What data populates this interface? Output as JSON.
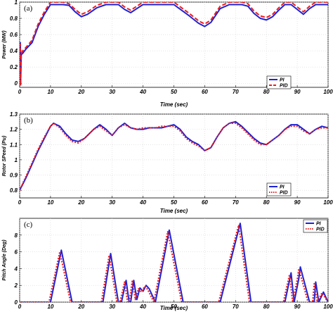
{
  "chart_data": [
    {
      "type": "line",
      "panel_label": "(a)",
      "xlabel": "Time (sec)",
      "ylabel": "Power (MW)",
      "xlim": [
        0,
        100
      ],
      "ylim": [
        -0.05,
        1.0
      ],
      "xticks": [
        0,
        10,
        20,
        30,
        40,
        50,
        60,
        70,
        80,
        90,
        100
      ],
      "yticks": [
        0,
        0.2,
        0.4,
        0.6,
        0.8,
        1
      ],
      "xtick_labels": [
        "0",
        "10",
        "20",
        "30",
        "40",
        "50",
        "60",
        "70",
        "80",
        "90",
        "100"
      ],
      "ytick_labels": [
        "0",
        "0.2",
        "0.4",
        "0.6",
        "0.8",
        "1"
      ],
      "grid": true,
      "legend_position": "lower-right",
      "series": [
        {
          "name": "PI",
          "color": "#1f22d6",
          "style": "solid",
          "x": [
            0,
            0.2,
            0.3,
            0.5,
            0.7,
            1,
            2,
            4,
            6,
            8,
            10,
            11,
            14,
            16,
            18,
            20,
            22,
            25,
            28,
            29,
            32,
            34,
            36,
            38,
            40,
            45,
            50,
            55,
            58,
            60,
            62,
            65,
            68,
            70,
            72,
            74,
            76,
            78,
            80,
            82,
            84,
            86,
            88,
            90,
            92,
            94,
            96,
            100
          ],
          "y": [
            0.4,
            0.5,
            -0.02,
            0.35,
            0.36,
            0.37,
            0.42,
            0.5,
            0.7,
            0.85,
            0.97,
            0.97,
            0.97,
            0.96,
            0.88,
            0.82,
            0.85,
            0.93,
            0.97,
            0.97,
            0.97,
            0.91,
            0.87,
            0.92,
            0.97,
            0.97,
            0.97,
            0.83,
            0.74,
            0.7,
            0.75,
            0.92,
            0.97,
            0.97,
            0.97,
            0.95,
            0.86,
            0.8,
            0.78,
            0.82,
            0.9,
            0.97,
            0.97,
            0.91,
            0.85,
            0.92,
            0.97,
            0.97
          ]
        },
        {
          "name": "PID",
          "color": "#ee1c1c",
          "style": "dashed",
          "x": [
            0,
            0.2,
            0.3,
            0.5,
            0.7,
            1,
            2,
            4,
            6,
            8,
            10,
            11,
            14,
            16,
            18,
            20,
            22,
            25,
            28,
            29,
            32,
            34,
            36,
            38,
            40,
            45,
            50,
            55,
            58,
            60,
            62,
            65,
            68,
            70,
            72,
            74,
            76,
            78,
            80,
            82,
            84,
            86,
            88,
            90,
            92,
            94,
            96,
            100
          ],
          "y": [
            0.45,
            0.48,
            -0.03,
            0.36,
            0.38,
            0.4,
            0.44,
            0.53,
            0.73,
            0.88,
            1.0,
            1.0,
            1.0,
            0.98,
            0.91,
            0.85,
            0.88,
            0.96,
            1.0,
            1.0,
            1.0,
            0.94,
            0.9,
            0.95,
            1.0,
            1.0,
            1.0,
            0.86,
            0.77,
            0.73,
            0.78,
            0.95,
            1.0,
            1.0,
            1.0,
            0.98,
            0.89,
            0.83,
            0.81,
            0.85,
            0.93,
            1.0,
            1.0,
            0.94,
            0.88,
            0.95,
            1.0,
            1.0
          ]
        }
      ]
    },
    {
      "type": "line",
      "panel_label": "(b)",
      "xlabel": "Time (sec)",
      "ylabel": "Rotor SPeed (Pu)",
      "xlim": [
        0,
        100
      ],
      "ylim": [
        0.75,
        1.3
      ],
      "xticks": [
        0,
        10,
        20,
        30,
        40,
        50,
        60,
        70,
        80,
        90,
        100
      ],
      "yticks": [
        0.8,
        0.9,
        1.0,
        1.1,
        1.2,
        1.3
      ],
      "xtick_labels": [
        "0",
        "10",
        "20",
        "30",
        "40",
        "50",
        "60",
        "70",
        "80",
        "90",
        "100"
      ],
      "ytick_labels": [
        "0.8",
        "0.9",
        "1",
        "1.1",
        "1.2",
        "1.3"
      ],
      "grid": true,
      "legend_position": "lower-right",
      "series": [
        {
          "name": "PI",
          "color": "#1f22d6",
          "style": "solid",
          "x": [
            0,
            2,
            4,
            6,
            8,
            10,
            11,
            13,
            15,
            17,
            19,
            21,
            24,
            26,
            28,
            30,
            32,
            34,
            36,
            38,
            40,
            42,
            44,
            46,
            48,
            50,
            52,
            54,
            56,
            58,
            60,
            62,
            64,
            66,
            68,
            70,
            72,
            74,
            76,
            78,
            80,
            82,
            84,
            86,
            88,
            90,
            92,
            94,
            96,
            98,
            100
          ],
          "y": [
            0.8,
            0.88,
            0.97,
            1.06,
            1.14,
            1.22,
            1.24,
            1.22,
            1.17,
            1.13,
            1.12,
            1.14,
            1.2,
            1.23,
            1.2,
            1.16,
            1.21,
            1.24,
            1.21,
            1.2,
            1.2,
            1.21,
            1.21,
            1.21,
            1.22,
            1.23,
            1.2,
            1.15,
            1.12,
            1.1,
            1.06,
            1.08,
            1.15,
            1.21,
            1.24,
            1.25,
            1.22,
            1.18,
            1.14,
            1.11,
            1.1,
            1.13,
            1.16,
            1.2,
            1.23,
            1.23,
            1.2,
            1.17,
            1.2,
            1.22,
            1.21
          ]
        },
        {
          "name": "PID",
          "color": "#ee1c1c",
          "style": "dotted",
          "x": [
            0,
            2,
            4,
            6,
            8,
            10,
            11,
            13,
            15,
            17,
            19,
            21,
            24,
            26,
            28,
            30,
            32,
            34,
            36,
            38,
            40,
            42,
            44,
            46,
            48,
            50,
            52,
            54,
            56,
            58,
            60,
            62,
            64,
            66,
            68,
            70,
            72,
            74,
            76,
            78,
            80,
            82,
            84,
            86,
            88,
            90,
            92,
            94,
            96,
            98,
            100
          ],
          "y": [
            0.8,
            0.89,
            0.98,
            1.07,
            1.15,
            1.22,
            1.24,
            1.21,
            1.16,
            1.12,
            1.11,
            1.14,
            1.2,
            1.22,
            1.19,
            1.16,
            1.21,
            1.23,
            1.21,
            1.2,
            1.21,
            1.21,
            1.21,
            1.22,
            1.22,
            1.22,
            1.19,
            1.14,
            1.11,
            1.09,
            1.06,
            1.08,
            1.15,
            1.21,
            1.24,
            1.24,
            1.21,
            1.17,
            1.13,
            1.1,
            1.1,
            1.13,
            1.16,
            1.2,
            1.22,
            1.22,
            1.19,
            1.17,
            1.2,
            1.21,
            1.21
          ]
        }
      ]
    },
    {
      "type": "line",
      "panel_label": "(c)",
      "xlabel": "Time (sec)",
      "ylabel": "Pitch Angle (Deg)",
      "xlim": [
        0,
        100
      ],
      "ylim": [
        0,
        10
      ],
      "xticks": [
        0,
        10,
        20,
        30,
        40,
        50,
        60,
        70,
        80,
        90,
        100
      ],
      "yticks": [
        0,
        2,
        4,
        6,
        8
      ],
      "xtick_labels": [
        "0",
        "10",
        "20",
        "30",
        "40",
        "50",
        "60",
        "70",
        "80",
        "90",
        "100"
      ],
      "ytick_labels": [
        "0",
        "2",
        "4",
        "6",
        "8"
      ],
      "grid": true,
      "legend_position": "top-right",
      "series": [
        {
          "name": "PI",
          "color": "#1f22d6",
          "style": "solid",
          "x": [
            0,
            10,
            13.5,
            17,
            27,
            29.5,
            32,
            33,
            34.5,
            35.5,
            36,
            37,
            38,
            39,
            40,
            41,
            42,
            44,
            48.5,
            53,
            65,
            71.5,
            75,
            86,
            88,
            89,
            90.5,
            91,
            94,
            95.5,
            96,
            97,
            98.5,
            100
          ],
          "y": [
            0,
            0,
            6.2,
            0,
            0,
            5.8,
            0,
            0,
            2.6,
            0,
            0,
            2.6,
            0.3,
            1.7,
            1.3,
            2.0,
            1.6,
            0,
            8.6,
            0,
            0,
            9.4,
            0,
            0,
            3.5,
            0,
            2.8,
            4.2,
            0,
            0,
            2.4,
            0,
            1.2,
            0
          ]
        },
        {
          "name": "PID",
          "color": "#ee1c1c",
          "style": "dotted",
          "x": [
            0,
            9.5,
            13,
            16.5,
            26.5,
            29,
            31.5,
            32.5,
            34,
            35,
            35.5,
            36.5,
            37.5,
            38.5,
            39.5,
            40.5,
            41.5,
            43.5,
            48,
            52.5,
            64.5,
            71,
            74.5,
            85.5,
            87.5,
            88.5,
            90,
            90.5,
            93.5,
            95,
            95.5,
            96.5,
            98,
            100
          ],
          "y": [
            0,
            0,
            6.0,
            0,
            0,
            5.6,
            0,
            0,
            2.4,
            0,
            0,
            2.5,
            0.3,
            1.6,
            1.2,
            1.9,
            1.5,
            0,
            8.4,
            0,
            0,
            9.2,
            0,
            0,
            3.3,
            0,
            2.7,
            4.0,
            0,
            0,
            2.2,
            0,
            1.1,
            0
          ]
        }
      ]
    }
  ]
}
